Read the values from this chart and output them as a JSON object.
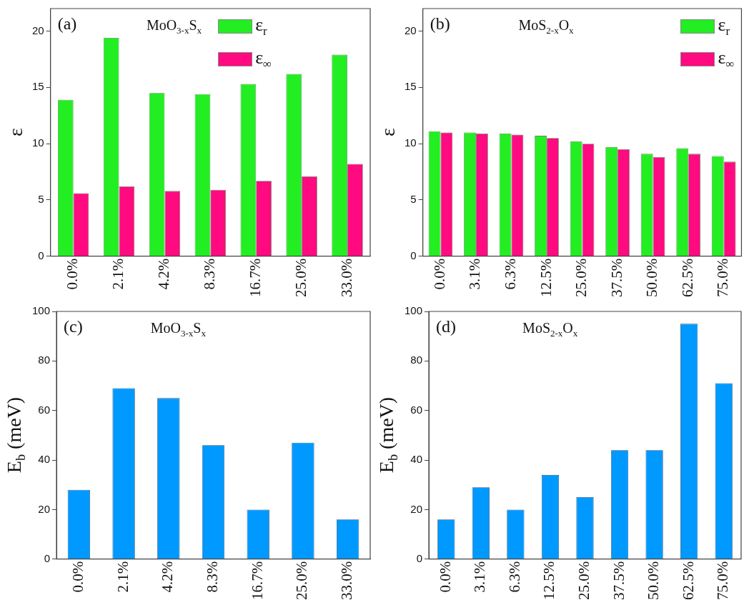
{
  "chart_data": [
    {
      "type": "bar",
      "title": "(a)",
      "subtitle": "MoO$_{3-x}$S$_{x}$",
      "ylabel": "ε",
      "categories": [
        "0.0%",
        "2.1%",
        "4.2%",
        "8.3%",
        "16.7%",
        "25.0%",
        "33.0%"
      ],
      "series": [
        {
          "name": "ε$_{r}$",
          "color": "#22ee22",
          "values": [
            13.9,
            19.4,
            14.5,
            14.4,
            15.3,
            16.2,
            17.9
          ]
        },
        {
          "name": "ε$_{∞}$",
          "color": "#ff0a80",
          "values": [
            5.6,
            6.2,
            5.8,
            5.9,
            6.7,
            7.1,
            8.2
          ]
        }
      ],
      "ylim": [
        0,
        22
      ],
      "yticks": [
        0,
        5,
        10,
        15,
        20
      ],
      "legend": "top right"
    },
    {
      "type": "bar",
      "title": "(b)",
      "subtitle": "MoS$_{2-x}$O$_{x}$",
      "ylabel": "ε",
      "categories": [
        "0.0%",
        "3.1%",
        "6.3%",
        "12.5%",
        "25.0%",
        "37.5%",
        "50.0%",
        "62.5%",
        "75.0%"
      ],
      "series": [
        {
          "name": "ε$_{r}$",
          "color": "#22ee22",
          "values": [
            11.1,
            11.0,
            10.9,
            10.7,
            10.2,
            9.7,
            9.1,
            9.6,
            8.9
          ]
        },
        {
          "name": "ε$_{∞}$",
          "color": "#ff0a80",
          "values": [
            11.0,
            10.9,
            10.8,
            10.5,
            10.0,
            9.5,
            8.8,
            9.1,
            8.4
          ]
        }
      ],
      "ylim": [
        0,
        22
      ],
      "yticks": [
        0,
        5,
        10,
        15,
        20
      ],
      "legend": "top right"
    },
    {
      "type": "bar",
      "title": "(c)",
      "subtitle": "MoO$_{3-x}$S$_{x}$",
      "ylabel": "E$_{b}$ (meV)",
      "categories": [
        "0.0%",
        "2.1%",
        "4.2%",
        "8.3%",
        "16.7%",
        "25.0%",
        "33.0%"
      ],
      "values": [
        28,
        69,
        65,
        46,
        20,
        47,
        16
      ],
      "color": "#0099ff",
      "ylim": [
        0,
        100
      ],
      "yticks": [
        0,
        20,
        40,
        60,
        80,
        100
      ]
    },
    {
      "type": "bar",
      "title": "(d)",
      "subtitle": "MoS$_{2-x}$O$_{x}$",
      "ylabel": "E$_{b}$ (meV)",
      "categories": [
        "0.0%",
        "3.1%",
        "6.3%",
        "12.5%",
        "25.0%",
        "37.5%",
        "50.0%",
        "62.5%",
        "75.0%"
      ],
      "values": [
        16,
        29,
        20,
        34,
        25,
        44,
        44,
        95,
        71
      ],
      "color": "#0099ff",
      "ylim": [
        0,
        100
      ],
      "yticks": [
        0,
        20,
        40,
        60,
        80,
        100
      ]
    }
  ]
}
